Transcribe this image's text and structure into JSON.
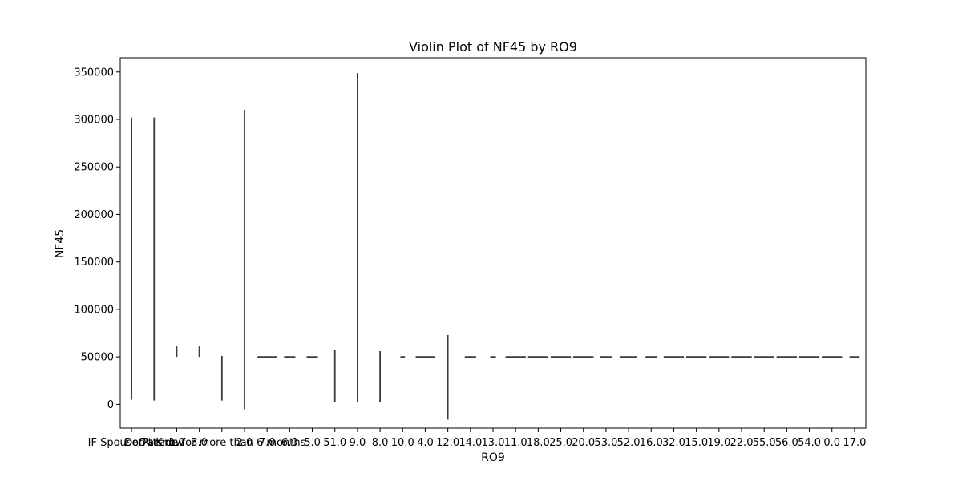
{
  "chart_data": {
    "type": "violin",
    "title": "Violin Plot of NF45 by RO9",
    "xlabel": "RO9",
    "ylabel": "NF45",
    "ylim": [
      -25000,
      365000
    ],
    "yticks": [
      0,
      50000,
      100000,
      150000,
      200000,
      250000,
      300000,
      350000
    ],
    "ytick_labels": [
      "0",
      "50000",
      "100000",
      "150000",
      "200000",
      "250000",
      "300000",
      "350000"
    ],
    "grid": false,
    "legend": "none",
    "mark_color": "#3a3a3a",
    "categories": [
      "IF Spouse/Parent",
      "Don't Know",
      "1.0",
      "3.0",
      "Outside for more than 6 months",
      "2.0",
      "7.0",
      "6.0",
      "5.0",
      "51.0",
      "9.0",
      "8.0",
      "10.0",
      "4.0",
      "12.0",
      "14.0",
      "13.0",
      "11.0",
      "18.0",
      "25.0",
      "20.0",
      "53.0",
      "52.0",
      "16.0",
      "32.0",
      "15.0",
      "19.0",
      "22.0",
      "55.0",
      "56.0",
      "54.0",
      "0.0",
      "17.0"
    ],
    "tick_labels": [
      "IF Spouse/Parent",
      "Don't Know",
      "1.0",
      "3.0",
      "Outside for more than 6 months",
      "2.0",
      "7.0",
      "6.0",
      "5.0",
      "51.0",
      "9.0",
      "8.0",
      "10.0",
      "4.0",
      "12.0",
      "14.0",
      "13.0",
      "11.0",
      "18.0",
      "25.0",
      "20.0",
      "53.0",
      "52.0",
      "16.0",
      "32.0",
      "15.0",
      "19.0",
      "22.0",
      "55.0",
      "56.0",
      "54.0",
      "0.0",
      "17.0"
    ],
    "series": [
      {
        "category": "IF Spouse/Parent",
        "min": 5000,
        "max": 302000
      },
      {
        "category": "Don't Know",
        "min": 4000,
        "max": 302000
      },
      {
        "category": "1.0",
        "min": 50000,
        "max": 61000
      },
      {
        "category": "3.0",
        "min": 50000,
        "max": 61000
      },
      {
        "category": "Outside for more than 6 months",
        "min": 4000,
        "max": 51000
      },
      {
        "category": "2.0",
        "min": -5000,
        "max": 310000
      },
      {
        "category": "7.0",
        "min": 50000,
        "max": 50000,
        "width": 0.85
      },
      {
        "category": "6.0",
        "min": 50000,
        "max": 50000,
        "width": 0.5
      },
      {
        "category": "5.0",
        "min": 50000,
        "max": 50000,
        "width": 0.5
      },
      {
        "category": "51.0",
        "min": 2000,
        "max": 57000
      },
      {
        "category": "9.0",
        "min": 2000,
        "max": 349000
      },
      {
        "category": "8.0",
        "min": 2000,
        "max": 56000
      },
      {
        "category": "10.0",
        "min": 50000,
        "max": 50000,
        "width": 0.2
      },
      {
        "category": "4.0",
        "min": 50000,
        "max": 50000,
        "width": 0.85
      },
      {
        "category": "12.0",
        "min": -16000,
        "max": 73000
      },
      {
        "category": "14.0",
        "min": 50000,
        "max": 50000,
        "width": 0.5
      },
      {
        "category": "13.0",
        "min": 50000,
        "max": 50000,
        "width": 0.25
      },
      {
        "category": "11.0",
        "min": 50000,
        "max": 50000,
        "width": 0.9
      },
      {
        "category": "18.0",
        "min": 50000,
        "max": 50000,
        "width": 0.9
      },
      {
        "category": "25.0",
        "min": 50000,
        "max": 50000,
        "width": 0.9
      },
      {
        "category": "20.0",
        "min": 50000,
        "max": 50000,
        "width": 0.9
      },
      {
        "category": "53.0",
        "min": 50000,
        "max": 50000,
        "width": 0.5
      },
      {
        "category": "52.0",
        "min": 50000,
        "max": 50000,
        "width": 0.75
      },
      {
        "category": "16.0",
        "min": 50000,
        "max": 50000,
        "width": 0.5
      },
      {
        "category": "32.0",
        "min": 50000,
        "max": 50000,
        "width": 0.9
      },
      {
        "category": "15.0",
        "min": 50000,
        "max": 50000,
        "width": 0.9
      },
      {
        "category": "19.0",
        "min": 50000,
        "max": 50000,
        "width": 0.9
      },
      {
        "category": "22.0",
        "min": 50000,
        "max": 50000,
        "width": 0.9
      },
      {
        "category": "55.0",
        "min": 50000,
        "max": 50000,
        "width": 0.9
      },
      {
        "category": "56.0",
        "min": 50000,
        "max": 50000,
        "width": 0.9
      },
      {
        "category": "54.0",
        "min": 50000,
        "max": 50000,
        "width": 0.9
      },
      {
        "category": "0.0",
        "min": 50000,
        "max": 50000,
        "width": 0.9
      },
      {
        "category": "17.0",
        "min": 50000,
        "max": 50000,
        "width": 0.45
      }
    ]
  }
}
